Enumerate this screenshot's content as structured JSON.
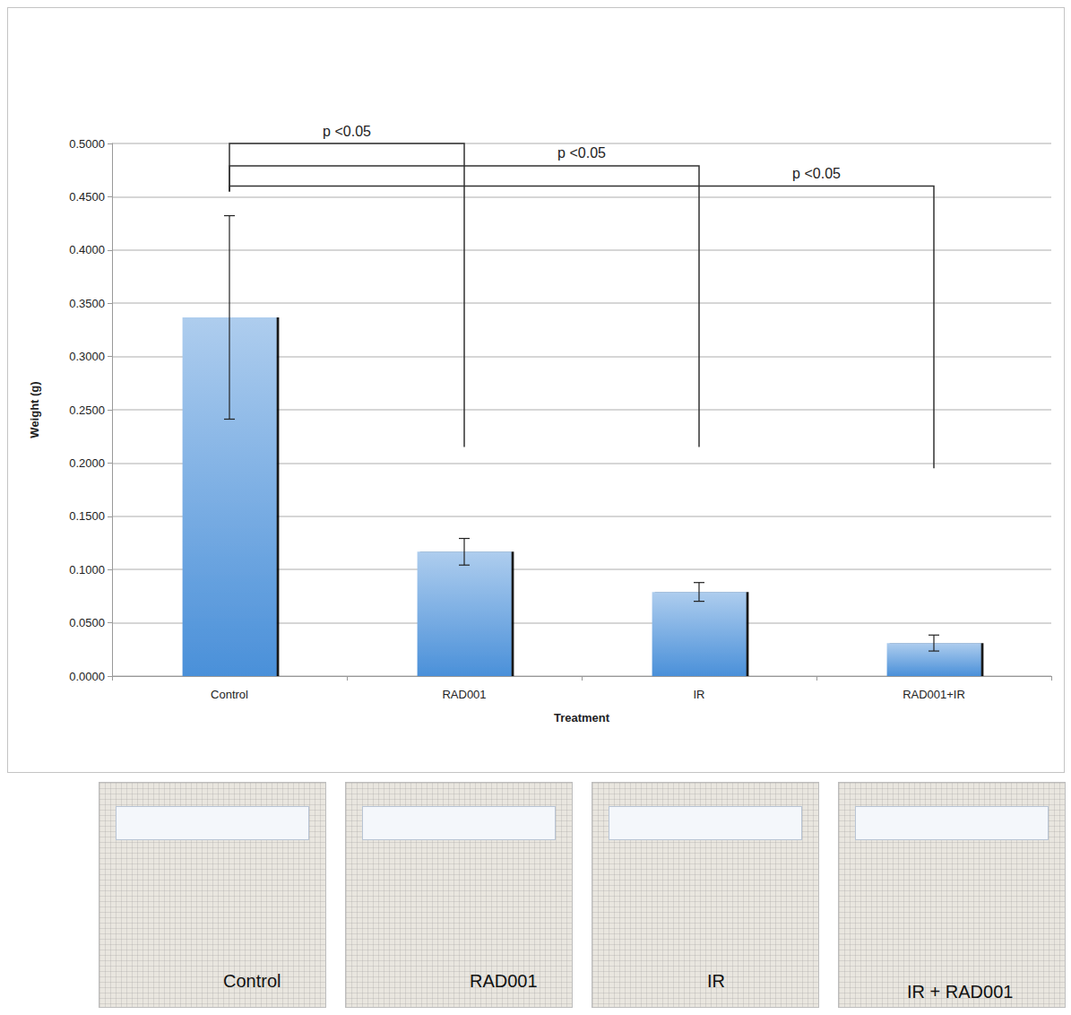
{
  "chart_data": {
    "type": "bar",
    "categories": [
      "Control",
      "RAD001",
      "IR",
      "RAD001+IR"
    ],
    "values": [
      0.3367,
      0.1167,
      0.079,
      0.031
    ],
    "errors": [
      0.0955,
      0.0125,
      0.0088,
      0.0075
    ],
    "color": "#4a90d9",
    "x_label": "Treatment",
    "y_label": "Weight (g)",
    "ylim": [
      0,
      0.5
    ],
    "yticks": [
      {
        "value": 0,
        "label": "0.0000"
      },
      {
        "value": 0.05,
        "label": "0.0500"
      },
      {
        "value": 0.1,
        "label": "0.1000"
      },
      {
        "value": 0.15,
        "label": "0.1500"
      },
      {
        "value": 0.2,
        "label": "0.2000"
      },
      {
        "value": 0.25,
        "label": "0.2500"
      },
      {
        "value": 0.3,
        "label": "0.3000"
      },
      {
        "value": 0.35,
        "label": "0.3500"
      },
      {
        "value": 0.4,
        "label": "0.4000"
      },
      {
        "value": 0.45,
        "label": "0.4500"
      },
      {
        "value": 0.5,
        "label": "0.5000"
      }
    ],
    "grid": true,
    "annotations": [
      {
        "from": "Control",
        "to": "RAD001",
        "y": 0.5,
        "from_end": 0.455,
        "to_end": 0.215,
        "text": "p <0.05"
      },
      {
        "from": "Control",
        "to": "IR",
        "y": 0.479,
        "from_end": 0.455,
        "to_end": 0.215,
        "text": "p <0.05"
      },
      {
        "from": "Control",
        "to": "RAD001+IR",
        "y": 0.46,
        "from_end": 0.455,
        "to_end": 0.195,
        "text": "p <0.05"
      }
    ]
  },
  "photo_panels": [
    "Control",
    "RAD001",
    "IR",
    "IR + RAD001"
  ]
}
